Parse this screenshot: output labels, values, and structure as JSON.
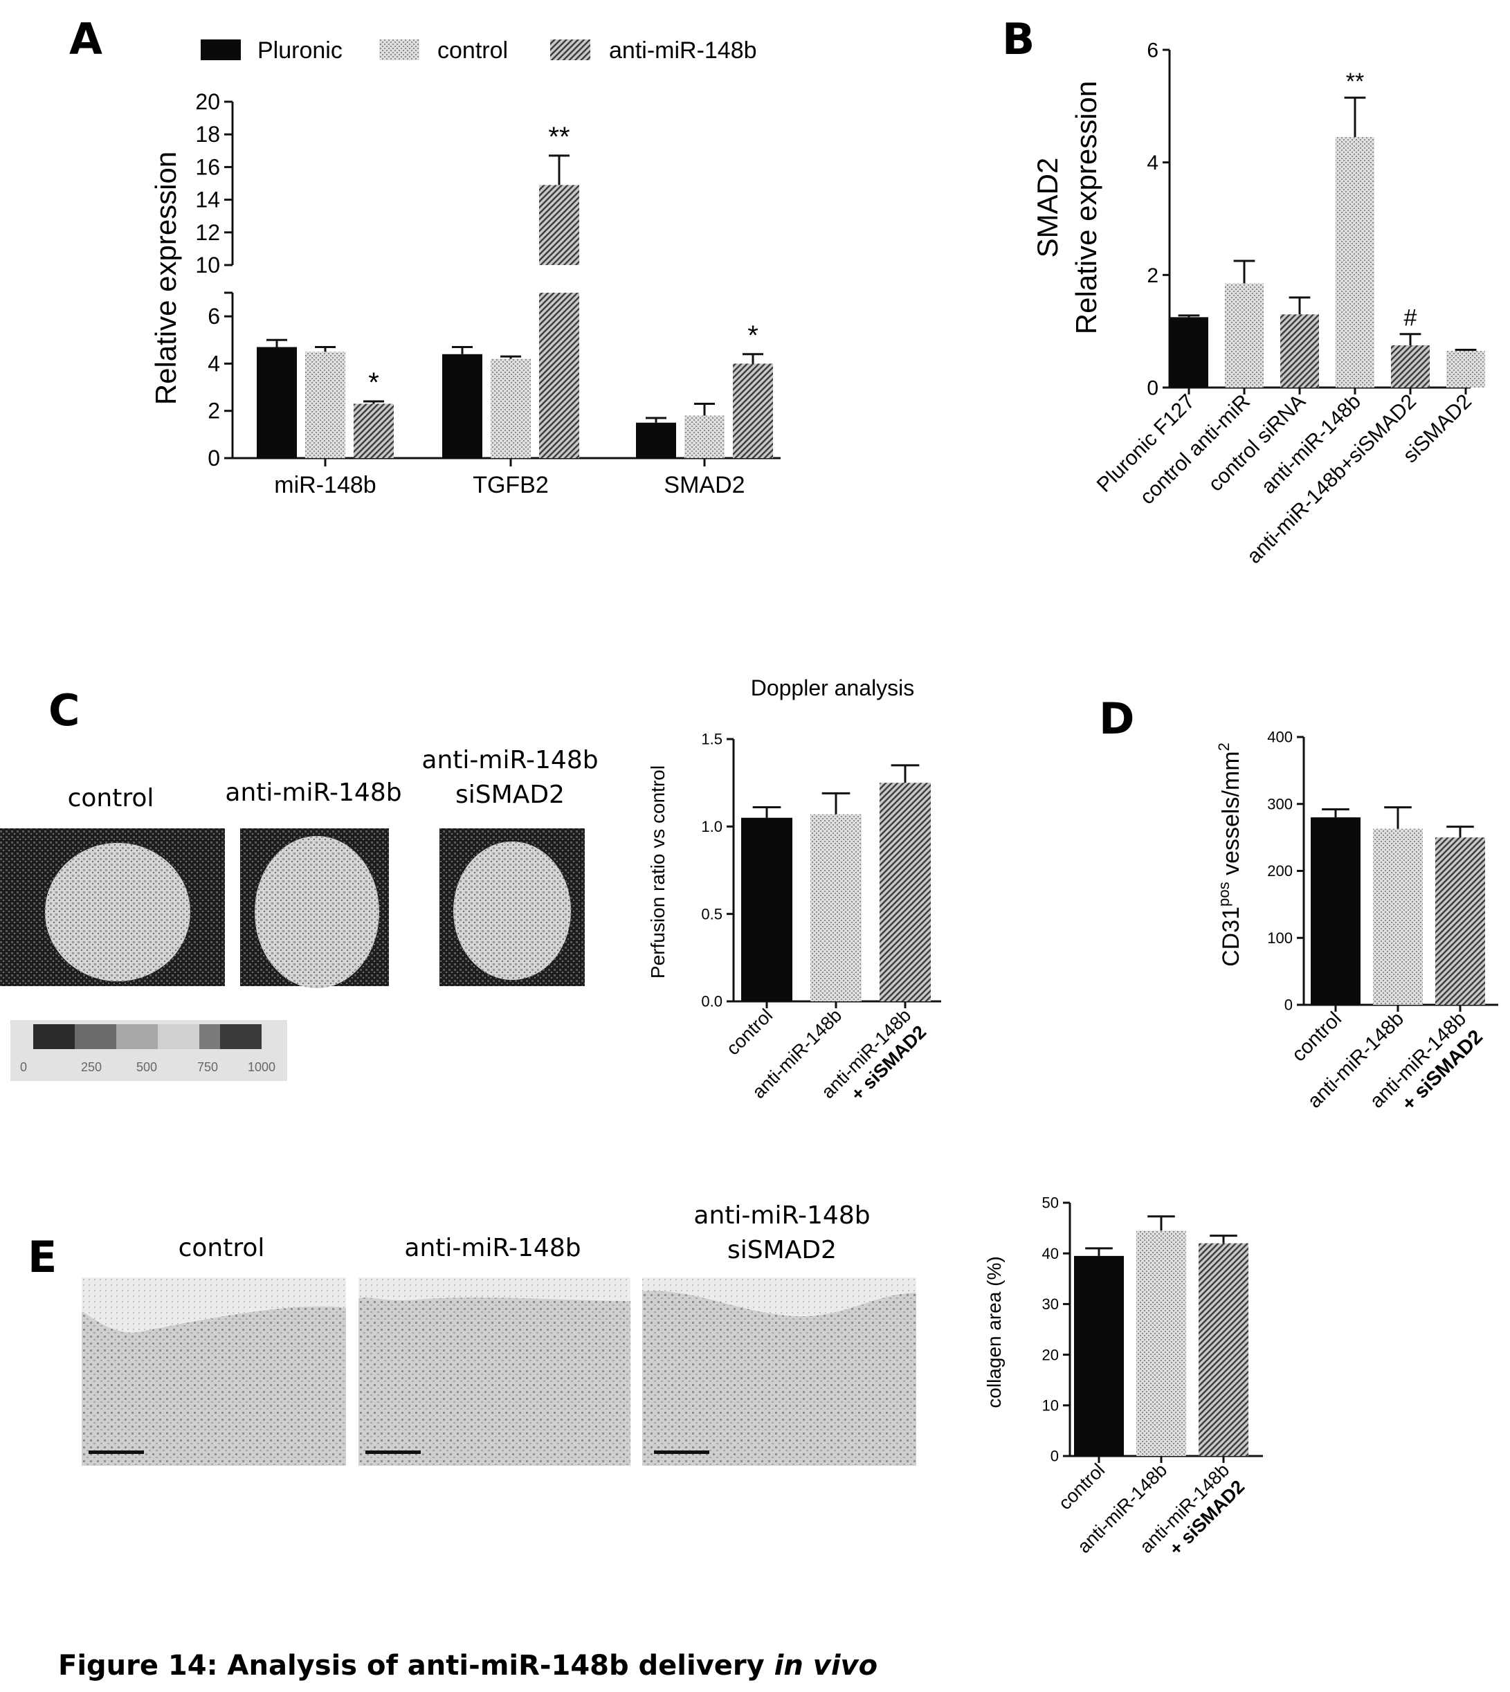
{
  "panel_letters": {
    "A": "A",
    "B": "B",
    "C": "C",
    "D": "D",
    "E": "E"
  },
  "panel_a": {
    "legend": [
      "Pluronic",
      "control",
      "anti-miR-148b"
    ]
  },
  "panel_c": {
    "image_labels": [
      "control",
      "anti-miR-148b",
      "anti-miR-148b",
      "siSMAD2"
    ],
    "scale_ticks": [
      "0",
      "250",
      "500",
      "750",
      "1000"
    ]
  },
  "panel_e": {
    "image_labels": [
      "control",
      "anti-miR-148b",
      "anti-miR-148b",
      "siSMAD2"
    ]
  },
  "caption": {
    "text": "Figure 14:  Analysis of anti-miR-148b delivery ",
    "italic": "in vivo"
  },
  "colors": {
    "pluronic": "#0a0a0a",
    "control": "#c4c4c4",
    "anti": "#8c8c8c"
  },
  "chart_data": [
    {
      "id": "A",
      "type": "bar",
      "ylabel": "Relative expression",
      "categories": [
        "miR-148b",
        "TGFB2",
        "SMAD2"
      ],
      "series": [
        {
          "name": "Pluronic",
          "values": [
            4.7,
            4.4,
            1.5
          ],
          "errors": [
            0.3,
            0.3,
            0.2
          ]
        },
        {
          "name": "control",
          "values": [
            4.5,
            4.2,
            1.8
          ],
          "errors": [
            0.2,
            0.1,
            0.5
          ]
        },
        {
          "name": "anti-miR-148b",
          "values": [
            2.3,
            14.9,
            4.0
          ],
          "errors": [
            0.1,
            1.8,
            0.4
          ]
        }
      ],
      "annotations": [
        "*",
        "**",
        "*"
      ],
      "axis_break": [
        7,
        10
      ],
      "yticks_lower": [
        "0",
        "2",
        "4",
        "6"
      ],
      "yticks_upper": [
        "10",
        "12",
        "14",
        "16",
        "18",
        "20"
      ]
    },
    {
      "id": "B",
      "type": "bar",
      "ylabel": [
        "SMAD2",
        "Relative expression"
      ],
      "categories": [
        "Pluronic F127",
        "control anti-miR",
        "control siRNA",
        "anti-miR-148b",
        "anti-miR-148b+siSMAD2",
        "siSMAD2"
      ],
      "values": [
        1.25,
        1.85,
        1.3,
        4.45,
        0.75,
        0.65
      ],
      "errors": [
        0.03,
        0.4,
        0.3,
        0.7,
        0.2,
        0.02
      ],
      "annotations": [
        "",
        "",
        "",
        "**",
        "#",
        ""
      ],
      "yticks": [
        "0",
        "2",
        "4",
        "6"
      ],
      "ylim": [
        0,
        6
      ]
    },
    {
      "id": "C",
      "type": "bar",
      "title": "Doppler analysis",
      "ylabel": "Perfusion ratio vs control",
      "categories": [
        "control",
        "anti-miR-148b",
        "anti-miR-148b + siSMAD2"
      ],
      "category_lines": [
        [
          "control"
        ],
        [
          "anti-miR-148b"
        ],
        [
          "anti-miR-148b",
          "+ siSMAD2"
        ]
      ],
      "values": [
        1.05,
        1.07,
        1.25
      ],
      "errors": [
        0.06,
        0.12,
        0.1
      ],
      "yticks": [
        "0.0",
        "0.5",
        "1.0",
        "1.5"
      ],
      "ylim": [
        0,
        1.5
      ]
    },
    {
      "id": "D",
      "type": "bar",
      "ylabel": "CD31pos vessels/mm2",
      "categories": [
        "control",
        "anti-miR-148b",
        "anti-miR-148b + siSMAD2"
      ],
      "category_lines": [
        [
          "control"
        ],
        [
          "anti-miR-148b"
        ],
        [
          "anti-miR-148b",
          "+ siSMAD2"
        ]
      ],
      "values": [
        280,
        263,
        250
      ],
      "errors": [
        12,
        32,
        16
      ],
      "yticks": [
        "0",
        "100",
        "200",
        "300",
        "400"
      ],
      "ylim": [
        0,
        400
      ]
    },
    {
      "id": "E",
      "type": "bar",
      "ylabel": "collagen area (%)",
      "categories": [
        "control",
        "anti-miR-148b",
        "anti-miR-148b + siSMAD2"
      ],
      "category_lines": [
        [
          "control"
        ],
        [
          "anti-miR-148b"
        ],
        [
          "anti-miR-148b",
          "+ siSMAD2"
        ]
      ],
      "values": [
        39.5,
        44.5,
        42
      ],
      "errors": [
        1.5,
        2.8,
        1.5
      ],
      "yticks": [
        "0",
        "10",
        "20",
        "30",
        "40",
        "50"
      ],
      "ylim": [
        0,
        50
      ]
    }
  ]
}
